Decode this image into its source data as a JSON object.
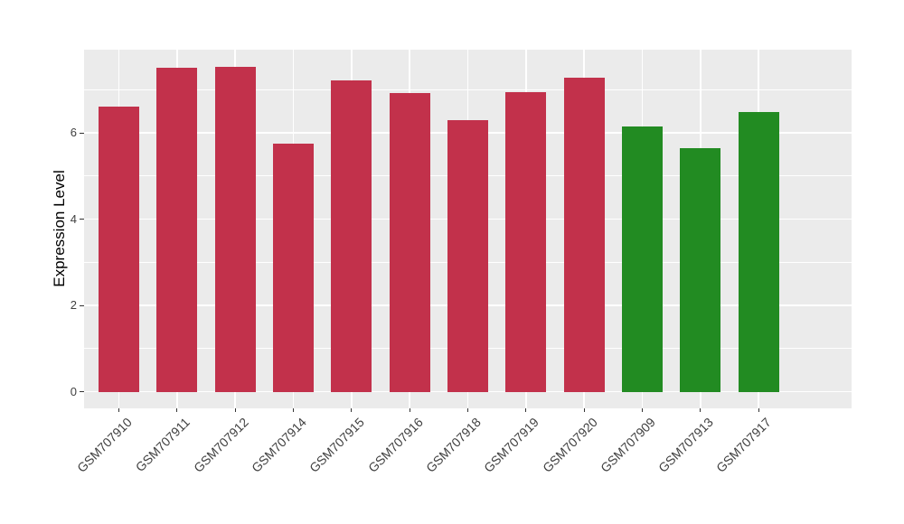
{
  "chart_data": {
    "type": "bar",
    "title": "",
    "xlabel": "",
    "ylabel": "Expression Level",
    "categories": [
      "GSM707910",
      "GSM707911",
      "GSM707912",
      "GSM707914",
      "GSM707915",
      "GSM707916",
      "GSM707918",
      "GSM707919",
      "GSM707920",
      "GSM707909",
      "GSM707913",
      "GSM707917"
    ],
    "values": [
      6.6,
      7.5,
      7.52,
      5.76,
      7.21,
      6.93,
      6.3,
      6.94,
      7.27,
      6.14,
      5.64,
      6.48
    ],
    "bar_groups": [
      "red",
      "red",
      "red",
      "red",
      "red",
      "red",
      "red",
      "red",
      "red",
      "green",
      "green",
      "green"
    ],
    "group_colors": {
      "red": "#C2314B",
      "green": "#228B22"
    },
    "yticks": [
      0,
      2,
      4,
      6
    ],
    "minor_yticks": [
      1,
      3,
      5,
      7
    ],
    "ylim": [
      0,
      7.93
    ],
    "bar_width_fraction": 0.7,
    "grid": "on",
    "legend_position": "none",
    "panel_bg": "#EBEBEB",
    "grid_color": "#FFFFFF",
    "tick_color": "#333333",
    "axis_text_color": "#404040"
  }
}
